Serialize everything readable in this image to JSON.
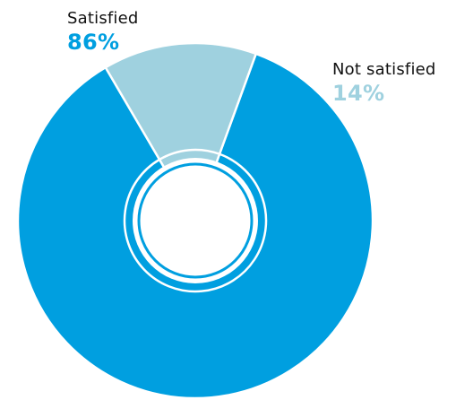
{
  "chart_data": {
    "type": "pie",
    "title": "",
    "donut": true,
    "categories": [
      "Satisfied",
      "Not satisfied"
    ],
    "values": [
      86,
      14
    ],
    "value_labels": [
      "86%",
      "14%"
    ],
    "colors": [
      "#009fe0",
      "#9fd1df"
    ],
    "legend": "none"
  }
}
